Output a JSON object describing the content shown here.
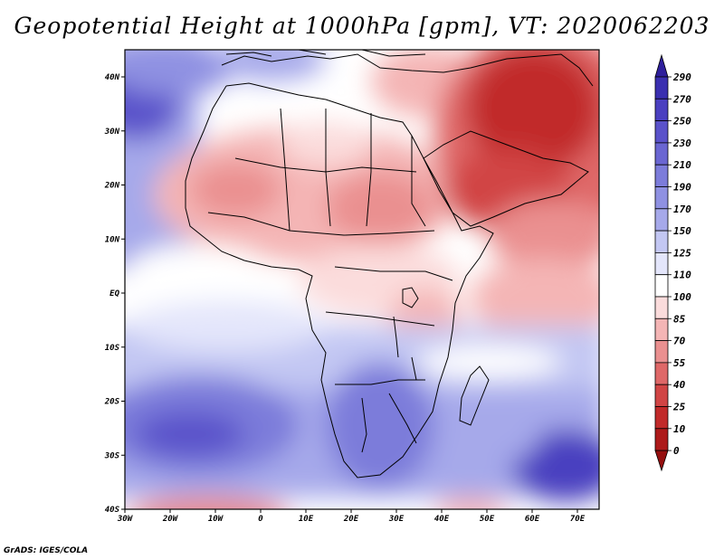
{
  "title": "Geopotential Height at 1000hPa [gpm], VT: 2020062203",
  "footer": "GrADS: IGES/COLA",
  "map": {
    "region": "Africa",
    "lon_range": [
      -30,
      75
    ],
    "lat_range": [
      -40,
      44
    ],
    "x_ticks": [
      "30W",
      "20W",
      "10W",
      "0",
      "10E",
      "20E",
      "30E",
      "40E",
      "50E",
      "60E",
      "70E"
    ],
    "y_ticks": [
      "40N",
      "30N",
      "20N",
      "10N",
      "EQ",
      "10S",
      "20S",
      "30S",
      "40S"
    ]
  },
  "colorbar": {
    "labels": [
      "290",
      "270",
      "250",
      "230",
      "210",
      "190",
      "170",
      "150",
      "125",
      "110",
      "100",
      "85",
      "70",
      "55",
      "40",
      "25",
      "10",
      "0"
    ],
    "colors": [
      "#2e1f9c",
      "#3a2fb0",
      "#4a3fc0",
      "#5a52ca",
      "#6a66d2",
      "#7c7cda",
      "#8f91e2",
      "#a6a9ea",
      "#c3c7f3",
      "#e4e6fb",
      "#ffffff",
      "#fbdcdc",
      "#f4b5b5",
      "#ea9090",
      "#df6868",
      "#d14545",
      "#c12a2a",
      "#ad1a1a",
      "#950f0f"
    ]
  }
}
